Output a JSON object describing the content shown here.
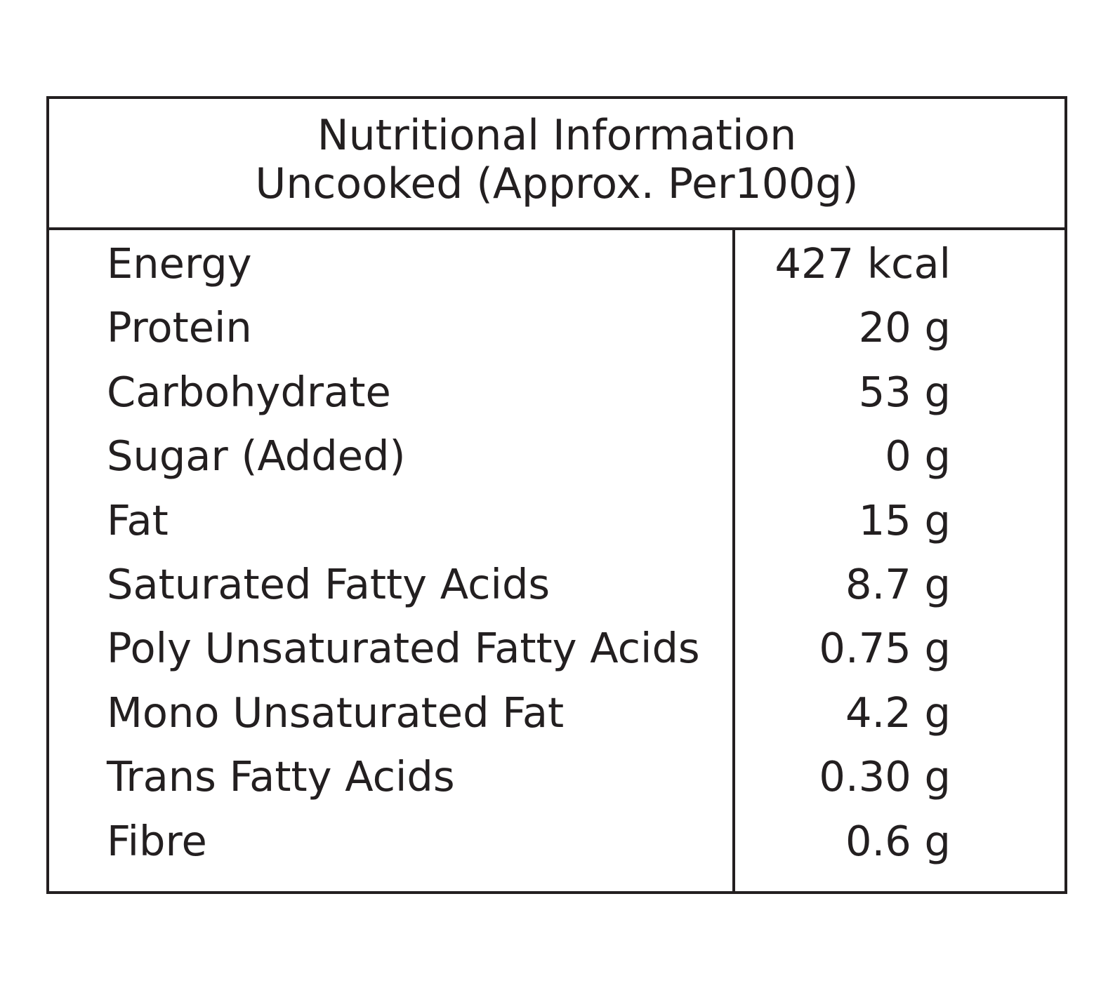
{
  "header": {
    "title": "Nutritional Information",
    "subtitle": "Uncooked (Approx. Per100g)"
  },
  "rows": [
    {
      "label": "Energy",
      "value": "427 kcal"
    },
    {
      "label": "Protein",
      "value": "20 g"
    },
    {
      "label": "Carbohydrate",
      "value": "53 g"
    },
    {
      "label": "Sugar (Added)",
      "value": "0 g"
    },
    {
      "label": "Fat",
      "value": "15 g"
    },
    {
      "label": "Saturated Fatty Acids",
      "value": "8.7 g"
    },
    {
      "label": "Poly Unsaturated Fatty Acids",
      "value": "0.75 g"
    },
    {
      "label": "Mono Unsaturated Fat",
      "value": "4.2 g"
    },
    {
      "label": "Trans Fatty Acids",
      "value": "0.30 g"
    },
    {
      "label": "Fibre",
      "value": "0.6 g"
    }
  ]
}
